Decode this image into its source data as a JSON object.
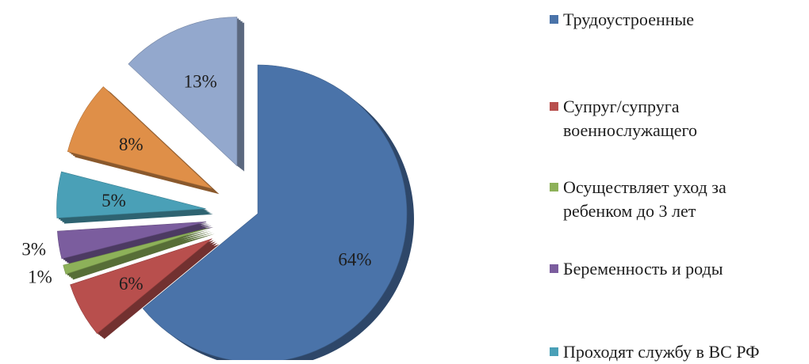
{
  "chart_data": {
    "type": "pie",
    "style": "3d-exploded",
    "slices": [
      {
        "label": "Трудоустроенные",
        "value": 64,
        "value_label": "64%",
        "color": "#4a73a9",
        "explode": 0,
        "in_legend": true
      },
      {
        "label": "Супруг/супруга\nвоеннослужащего",
        "value": 6,
        "value_label": "6%",
        "color": "#b84f4d",
        "explode": 0.35,
        "in_legend": true
      },
      {
        "label": "Осуществляет  уход за\nребенком до 3 лет",
        "value": 1,
        "value_label": "1%",
        "color": "#8db159",
        "explode": 0.35,
        "in_legend": true
      },
      {
        "label": "Беременность и роды",
        "value": 3,
        "value_label": "3%",
        "color": "#7b5d9e",
        "explode": 0.35,
        "in_legend": true
      },
      {
        "label": "Проходят службу  в ВС РФ",
        "value": 5,
        "value_label": "5%",
        "color": "#4aa0b7",
        "explode": 0.35,
        "in_legend": true
      },
      {
        "label": "",
        "value": 8,
        "value_label": "8%",
        "color": "#df8f48",
        "explode": 0.35,
        "in_legend": false
      },
      {
        "label": "",
        "value": 13,
        "value_label": "13%",
        "color": "#93a8cd",
        "explode": 0.35,
        "in_legend": false
      }
    ]
  }
}
